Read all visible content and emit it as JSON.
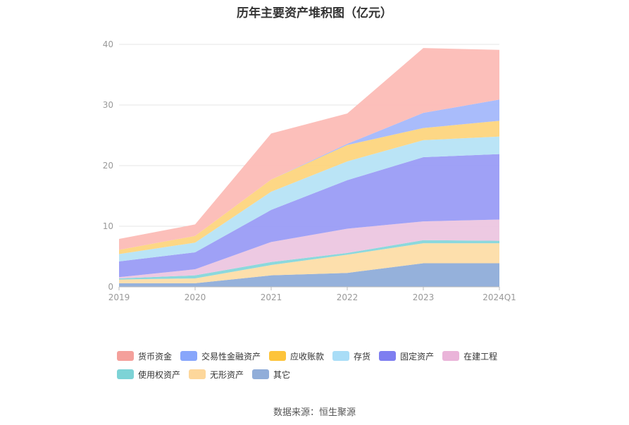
{
  "source": "数据来源：恒生聚源",
  "chart_data": {
    "type": "area",
    "stacked": true,
    "title": "历年主要资产堆积图（亿元）",
    "xlabel": "",
    "ylabel": "",
    "x": [
      "2019",
      "2020",
      "2021",
      "2022",
      "2023",
      "2024Q1"
    ],
    "ylim": [
      0,
      40
    ],
    "yticks": [
      0,
      10,
      20,
      30,
      40
    ],
    "grid": true,
    "legend_position": "bottom",
    "series": [
      {
        "name": "其它",
        "color": "#8FADD9",
        "values": [
          0.6,
          0.6,
          1.9,
          2.3,
          3.9,
          3.9
        ]
      },
      {
        "name": "无形资产",
        "color": "#FDDDA8",
        "values": [
          0.6,
          0.8,
          1.7,
          3.0,
          3.3,
          3.3
        ]
      },
      {
        "name": "使用权资产",
        "color": "#86D6DA",
        "values": [
          0.2,
          0.5,
          0.5,
          0.3,
          0.5,
          0.4
        ]
      },
      {
        "name": "在建工程",
        "color": "#ECC6E0",
        "values": [
          0.2,
          1.0,
          3.3,
          4.0,
          3.1,
          3.5
        ]
      },
      {
        "name": "固定资产",
        "color": "#9A9CF5",
        "values": [
          2.6,
          2.8,
          5.3,
          8.0,
          10.6,
          10.8
        ]
      },
      {
        "name": "存货",
        "color": "#B6E3F6",
        "values": [
          1.2,
          1.6,
          3.0,
          3.1,
          2.8,
          2.9
        ]
      },
      {
        "name": "应收账款",
        "color": "#FDD57E",
        "values": [
          0.7,
          1.1,
          2.0,
          2.7,
          2.0,
          2.6
        ]
      },
      {
        "name": "交易性金融资产",
        "color": "#A4B8FB",
        "values": [
          0.0,
          0.0,
          0.0,
          0.2,
          2.5,
          3.5
        ]
      },
      {
        "name": "货币资金",
        "color": "#FCBCB6",
        "values": [
          1.8,
          1.9,
          7.6,
          5.0,
          10.7,
          8.2
        ]
      }
    ],
    "legend": [
      {
        "name": "货币资金",
        "color": "#F4A09B"
      },
      {
        "name": "交易性金融资产",
        "color": "#88A6FB"
      },
      {
        "name": "应收账款",
        "color": "#FDC43B"
      },
      {
        "name": "存货",
        "color": "#A9DDF7"
      },
      {
        "name": "固定资产",
        "color": "#7E7EF0"
      },
      {
        "name": "在建工程",
        "color": "#EAB4D9"
      },
      {
        "name": "使用权资产",
        "color": "#7DD3D6"
      },
      {
        "name": "无形资产",
        "color": "#FDD79B"
      },
      {
        "name": "其它",
        "color": "#90ADD9"
      }
    ]
  }
}
